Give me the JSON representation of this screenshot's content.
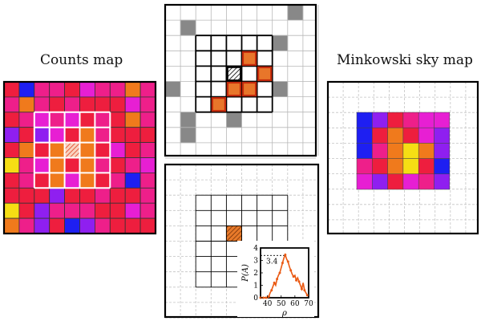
{
  "titles": {
    "left": "Counts map",
    "right": "Minkowski sky map"
  },
  "counts_map": {
    "rows": [
      [
        "R",
        "B",
        "M",
        "M",
        "R",
        "P",
        "M",
        "M",
        "O",
        "M"
      ],
      [
        "M",
        "O",
        "M",
        "R",
        "M",
        "R",
        "R",
        "R",
        "P",
        "M"
      ],
      [
        "R",
        "M",
        "P",
        "M",
        "P",
        "R",
        "M",
        "R",
        "O",
        "M"
      ],
      [
        "V",
        "R",
        "V",
        "P",
        "R",
        "O",
        "M",
        "R",
        "R",
        "R"
      ],
      [
        "R",
        "O",
        "R",
        "O",
        "H",
        "O",
        "R",
        "P",
        "R",
        "M"
      ],
      [
        "Y",
        "M",
        "P",
        "O",
        "R",
        "O",
        "M",
        "R",
        "M",
        "P"
      ],
      [
        "R",
        "M",
        "R",
        "O",
        "P",
        "O",
        "R",
        "M",
        "B",
        "M"
      ],
      [
        "R",
        "R",
        "R",
        "V",
        "R",
        "R",
        "M",
        "R",
        "R",
        "M"
      ],
      [
        "Y",
        "R",
        "V",
        "M",
        "M",
        "M",
        "R",
        "R",
        "P",
        "M"
      ],
      [
        "O",
        "M",
        "V",
        "R",
        "B",
        "V",
        "M",
        "R",
        "R",
        "R"
      ]
    ],
    "highlight_window": "5x5 centered, white outline",
    "hatched_cell": "center"
  },
  "minkowski_map": {
    "rows": [
      [
        "B",
        "V",
        "R",
        "M",
        "P",
        "P"
      ],
      [
        "B",
        "R",
        "O",
        "R",
        "P",
        "V"
      ],
      [
        "B",
        "M",
        "O",
        "Y",
        "O",
        "V"
      ],
      [
        "M",
        "R",
        "O",
        "Y",
        "R",
        "B"
      ],
      [
        "P",
        "V",
        "R",
        "P",
        "M",
        "V"
      ]
    ]
  },
  "top_panel": {
    "gray_cells": [
      [
        8,
        0
      ],
      [
        1,
        1
      ],
      [
        7,
        2
      ],
      [
        0,
        5
      ],
      [
        7,
        5
      ],
      [
        1,
        7
      ],
      [
        4,
        7
      ],
      [
        1,
        8
      ]
    ],
    "orange_cells": [
      [
        5,
        3
      ],
      [
        6,
        4
      ],
      [
        4,
        5
      ],
      [
        5,
        5
      ],
      [
        3,
        6
      ]
    ],
    "hatched_cell": [
      4,
      4
    ]
  },
  "bottom_panel": {
    "hatched_cell": [
      4,
      4
    ]
  },
  "inset": {
    "type": "line",
    "xlabel": "ρ",
    "ylabel": "P(A)",
    "xlim": [
      35,
      70
    ],
    "ylim": [
      0,
      4
    ],
    "xticks": [
      "40",
      "50",
      "60",
      "70"
    ],
    "yticks": [
      "0",
      "1",
      "2",
      "3",
      "4"
    ],
    "annotation": "3.4",
    "reference_value": 3.4,
    "x": [
      35,
      36,
      37,
      38,
      39,
      40,
      41,
      42,
      43,
      44,
      45,
      46,
      47,
      48,
      49,
      50,
      51,
      52,
      53,
      54,
      55,
      56,
      57,
      58,
      59,
      60,
      61,
      62,
      63,
      64,
      65,
      66,
      67,
      68,
      69
    ],
    "y": [
      0,
      0,
      0,
      0,
      0,
      0,
      0.1,
      0.4,
      0.6,
      0.9,
      1.2,
      1.0,
      1.5,
      1.8,
      2.0,
      2.4,
      2.8,
      3.2,
      3.45,
      3.1,
      2.9,
      2.5,
      2.2,
      1.9,
      1.7,
      1.8,
      1.4,
      1.6,
      1.3,
      1.0,
      0.7,
      1.2,
      0.6,
      0.4,
      0.2
    ]
  },
  "colors": {
    "R": "#ee1e3e",
    "M": "#ee1f8a",
    "P": "#e71fd3",
    "V": "#8f1ff0",
    "B": "#1e1ff2",
    "O": "#f07a1c",
    "Y": "#f6de14",
    "H": "#f7c9b0",
    "gray": "#888888",
    "orange_cell": "#e8762a",
    "orange_border": "#c42a0c",
    "curve": "#ea5a14"
  }
}
